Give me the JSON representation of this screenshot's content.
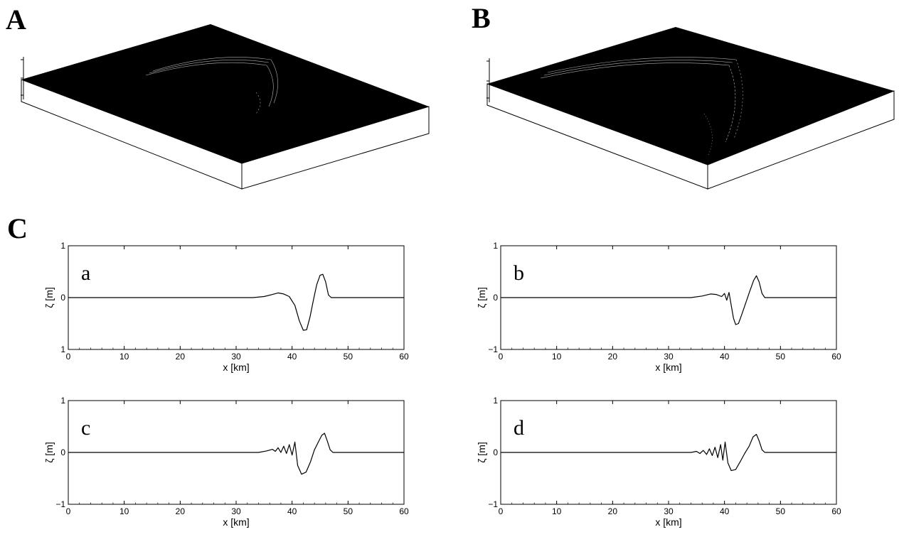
{
  "panels": {
    "A": "A",
    "B": "B",
    "C": "C"
  },
  "colors": {
    "surface": "#000000",
    "box_side": "#ffffff",
    "mesh": "#cfcfcf",
    "line": "#000000"
  },
  "chart_data": [
    {
      "type": "line",
      "label": "a",
      "xlabel": "x  [km]",
      "ylabel": "ζ  [m]",
      "xlim": [
        0,
        60
      ],
      "ylim": [
        -1,
        1
      ],
      "xticks": [
        "0",
        "10",
        "20",
        "30",
        "40",
        "50",
        "60"
      ],
      "yticks": [
        "1",
        "0",
        "1"
      ],
      "x": [
        0,
        30,
        33,
        35,
        36.5,
        37.5,
        38.5,
        39.5,
        40.5,
        41.3,
        42,
        42.6,
        43.2,
        43.8,
        44.4,
        45,
        45.5,
        46,
        46.5,
        47,
        50,
        60
      ],
      "y": [
        0,
        0,
        0,
        0.02,
        0.06,
        0.09,
        0.07,
        0.02,
        -0.15,
        -0.45,
        -0.63,
        -0.62,
        -0.38,
        -0.05,
        0.25,
        0.43,
        0.45,
        0.3,
        0.05,
        0,
        0,
        0
      ]
    },
    {
      "type": "line",
      "label": "b",
      "xlabel": "x  [km]",
      "ylabel": "ζ  [m]",
      "xlim": [
        0,
        60
      ],
      "ylim": [
        -1,
        1
      ],
      "xticks": [
        "0",
        "10",
        "20",
        "30",
        "40",
        "50",
        "60"
      ],
      "yticks": [
        "1",
        "0",
        "−1"
      ],
      "x": [
        0,
        30,
        34,
        36,
        37.5,
        38.5,
        39.5,
        40,
        40.4,
        40.8,
        41.2,
        41.6,
        42,
        42.5,
        43,
        43.8,
        44.5,
        45.2,
        45.7,
        46.2,
        46.7,
        47.2,
        50,
        60
      ],
      "y": [
        0,
        0,
        0,
        0.03,
        0.07,
        0.06,
        0.02,
        0.08,
        -0.05,
        0.1,
        -0.15,
        -0.4,
        -0.52,
        -0.5,
        -0.35,
        -0.1,
        0.12,
        0.33,
        0.42,
        0.3,
        0.08,
        0,
        0,
        0
      ]
    },
    {
      "type": "line",
      "label": "c",
      "xlabel": "x  [km]",
      "ylabel": "ζ  [m]",
      "xlim": [
        0,
        60
      ],
      "ylim": [
        -1,
        1
      ],
      "xticks": [
        "0",
        "10",
        "20",
        "30",
        "40",
        "50",
        "60"
      ],
      "yticks": [
        "1",
        "0",
        "−1"
      ],
      "x": [
        0,
        30,
        34,
        35.5,
        36.5,
        37,
        37.5,
        38,
        38.5,
        39,
        39.5,
        40,
        40.5,
        41,
        41.7,
        42.5,
        43.3,
        44,
        44.7,
        45.3,
        45.8,
        46.3,
        46.8,
        47.3,
        50,
        60
      ],
      "y": [
        0,
        0,
        0,
        0.03,
        0.06,
        0.02,
        0.09,
        0.0,
        0.12,
        -0.02,
        0.15,
        -0.05,
        0.2,
        -0.25,
        -0.42,
        -0.38,
        -0.18,
        0.05,
        0.2,
        0.33,
        0.37,
        0.22,
        0.05,
        0,
        0,
        0
      ]
    },
    {
      "type": "line",
      "label": "d",
      "xlabel": "x  [km]",
      "ylabel": "ζ  [m]",
      "xlim": [
        0,
        60
      ],
      "ylim": [
        -1,
        1
      ],
      "xticks": [
        "0",
        "10",
        "20",
        "30",
        "40",
        "50",
        "60"
      ],
      "yticks": [
        "1",
        "0",
        "−1"
      ],
      "x": [
        0,
        30,
        34,
        35,
        35.6,
        36.2,
        36.8,
        37.3,
        37.8,
        38.3,
        38.8,
        39.3,
        39.7,
        40.1,
        40.6,
        41.2,
        42,
        42.8,
        43.6,
        44.4,
        45.1,
        45.7,
        46.2,
        46.7,
        47.2,
        50,
        60
      ],
      "y": [
        0,
        0,
        0,
        0.02,
        -0.02,
        0.04,
        -0.04,
        0.07,
        -0.06,
        0.1,
        -0.1,
        0.15,
        -0.15,
        0.2,
        -0.2,
        -0.35,
        -0.33,
        -0.18,
        -0.02,
        0.12,
        0.3,
        0.35,
        0.22,
        0.05,
        0,
        0,
        0
      ]
    }
  ]
}
